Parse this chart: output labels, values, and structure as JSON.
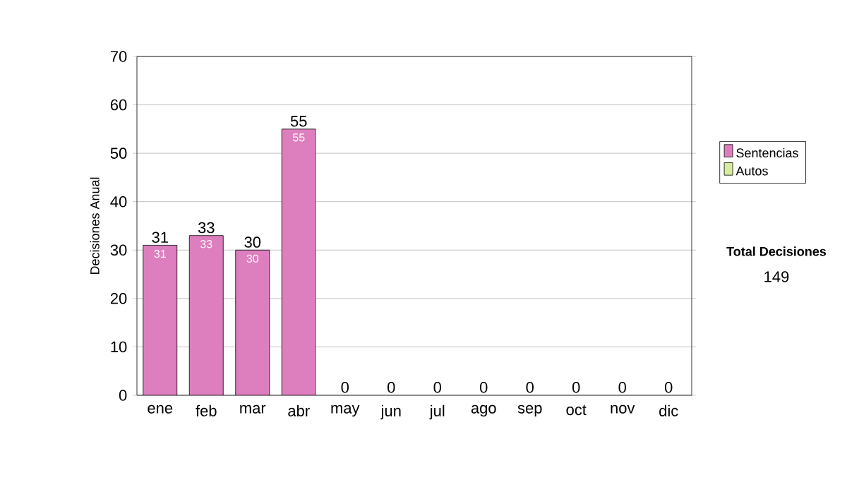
{
  "chart_data": {
    "type": "bar",
    "ylabel": "Decisiones Anual",
    "categories": [
      "ene",
      "feb",
      "mar",
      "abr",
      "may",
      "jun",
      "jul",
      "ago",
      "sep",
      "oct",
      "nov",
      "dic"
    ],
    "series": [
      {
        "name": "Sentencias",
        "color": "#dd7fbe",
        "values": [
          31,
          33,
          30,
          55,
          0,
          0,
          0,
          0,
          0,
          0,
          0,
          0
        ],
        "value_labels": [
          "31",
          "33",
          "30",
          "55",
          null,
          null,
          null,
          null,
          null,
          null,
          null,
          null
        ]
      },
      {
        "name": "Autos",
        "color": "#d8eca0",
        "values": [
          0,
          0,
          0,
          0,
          0,
          0,
          0,
          0,
          0,
          0,
          0,
          0
        ]
      }
    ],
    "stacked": true,
    "totals": [
      "31",
      "33",
      "30",
      "55",
      "0",
      "0",
      "0",
      "0",
      "0",
      "0",
      "0",
      "0"
    ],
    "ylim": [
      0,
      70
    ],
    "yticks": [
      0,
      10,
      20,
      30,
      40,
      50,
      60,
      70
    ],
    "grid": "y",
    "legend": "right",
    "annotations": [
      "Total Decisiones",
      "149"
    ]
  }
}
